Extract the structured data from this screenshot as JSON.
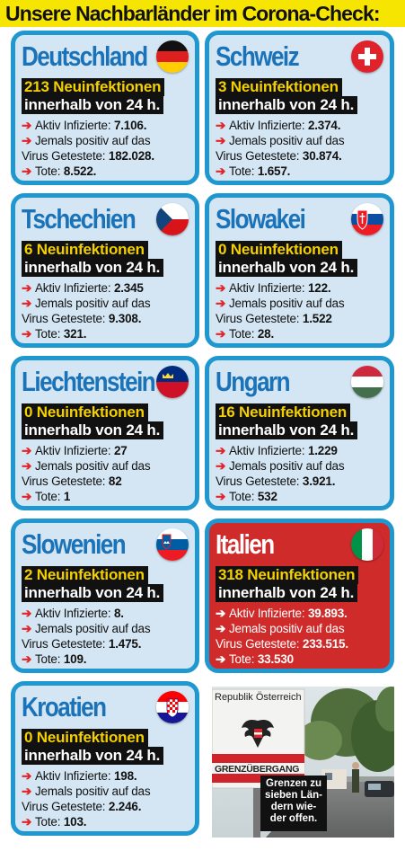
{
  "headline": "Unsere Nachbarländer im Corona-Check:",
  "labels": {
    "within": "innerhalb von 24 h.",
    "active": "Aktiv Infizierte:",
    "ever_line1": "Jemals positiv auf das",
    "ever_line2": "Virus Getestete:",
    "deaths": "Tote:"
  },
  "countries": [
    {
      "name": "Deutschland",
      "new_cases": "213 Neuinfektionen",
      "active": "7.106.",
      "tested": "182.028.",
      "deaths": "8.522.",
      "flag": "germany-flag-icon"
    },
    {
      "name": "Schweiz",
      "new_cases": "3 Neuinfektionen",
      "active": "2.374.",
      "tested": "30.874.",
      "deaths": "1.657.",
      "flag": "switzerland-flag-icon"
    },
    {
      "name": "Tschechien",
      "new_cases": "6 Neuinfektionen",
      "active": "2.345",
      "tested": "9.308.",
      "deaths": "321.",
      "flag": "czech-flag-icon"
    },
    {
      "name": "Slowakei",
      "new_cases": "0 Neuinfektionen",
      "active": "122.",
      "tested": "1.522",
      "deaths": "28.",
      "flag": "slovakia-flag-icon"
    },
    {
      "name": "Liechtenstein",
      "new_cases": "0 Neuinfektionen",
      "active": "27",
      "tested": "82",
      "deaths": "1",
      "flag": "liechtenstein-flag-icon"
    },
    {
      "name": "Ungarn",
      "new_cases": "16 Neuinfektionen",
      "active": "1.229",
      "tested": "3.921.",
      "deaths": "532",
      "flag": "hungary-flag-icon"
    },
    {
      "name": "Slowenien",
      "new_cases": "2 Neuinfektionen",
      "active": "8.",
      "tested": "1.475.",
      "deaths": "109.",
      "flag": "slovenia-flag-icon"
    },
    {
      "name": "Italien",
      "new_cases": "318 Neuinfektionen",
      "active": "39.893.",
      "tested": "233.515.",
      "deaths": "33.530",
      "flag": "italy-flag-icon"
    },
    {
      "name": "Kroatien",
      "new_cases": "0 Neuinfektionen",
      "active": "198.",
      "tested": "2.246.",
      "deaths": "103.",
      "flag": "croatia-flag-icon"
    }
  ],
  "photo": {
    "sign_top": "Republik Österreich",
    "sign_bottom": "GRENZÜBERGANG",
    "caption": [
      "Grenzen zu",
      "sieben Län-",
      "dern wie-",
      "der offen."
    ]
  },
  "colors": {
    "headline_bg": "#f6e500",
    "card_bg": "#d4e6f3",
    "card_border": "#1f97cf",
    "title_blue": "#1a73b9",
    "highlight_red": "#cf2b2b",
    "new_cases_yellow": "#f4d000",
    "arrow_red": "#e0262a"
  }
}
